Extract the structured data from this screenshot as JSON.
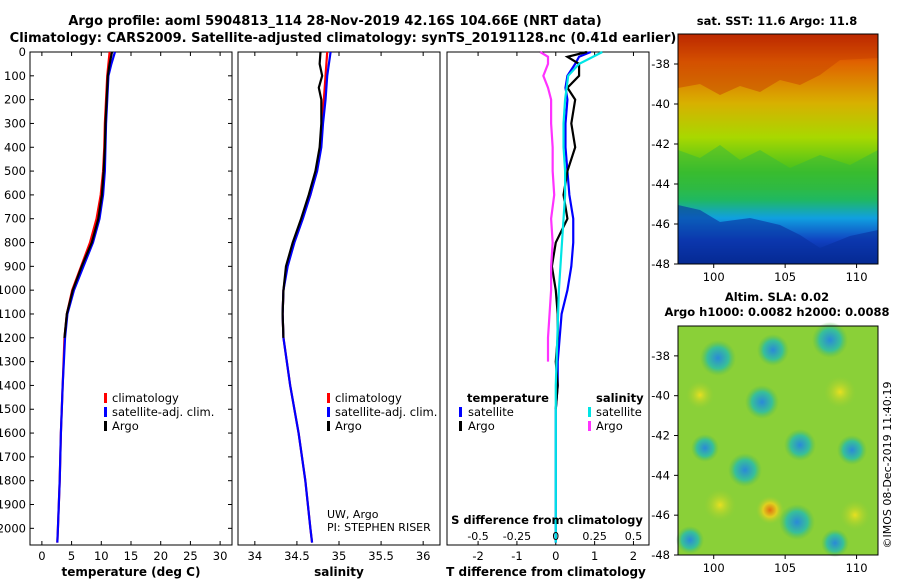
{
  "header": {
    "line1": "Argo profile: aoml 5904813_114 28-Nov-2019 42.16S 104.66E (NRT data)",
    "line2": "Climatology: CARS2009. Satellite-adjusted climatology: synTS_20191128.nc (0.41d earlier)"
  },
  "colors": {
    "climatology": "#ff0000",
    "satellite": "#0000ff",
    "argo": "#000000",
    "sat_salinity": "#00e5e5",
    "argo_salinity": "#ff33ff"
  },
  "chart_data": [
    {
      "type": "line",
      "name": "temperature",
      "xlabel": "temperature (deg C)",
      "ylabel": "",
      "xlim": [
        -2,
        32
      ],
      "ylim": [
        2070,
        0
      ],
      "xticks": [
        0,
        5,
        10,
        15,
        20,
        25,
        30
      ],
      "yticks": [
        0,
        100,
        200,
        300,
        400,
        500,
        600,
        700,
        800,
        900,
        1000,
        1100,
        1200,
        1300,
        1400,
        1500,
        1600,
        1700,
        1800,
        1900,
        2000
      ],
      "legend": [
        "climatology",
        "satellite-adj. clim.",
        "Argo"
      ],
      "series": [
        {
          "name": "climatology",
          "depth": [
            0,
            50,
            100,
            200,
            300,
            400,
            500,
            600,
            700,
            800,
            900,
            1000,
            1100,
            1200,
            1400,
            1600,
            1800,
            2000,
            2060
          ],
          "values": [
            11.4,
            11.2,
            11.0,
            10.8,
            10.6,
            10.5,
            10.3,
            9.9,
            9.2,
            8.1,
            6.6,
            5.1,
            4.2,
            3.8,
            3.5,
            3.2,
            3.0,
            2.7,
            2.6
          ]
        },
        {
          "name": "satellite-adj. clim.",
          "depth": [
            0,
            50,
            100,
            200,
            300,
            400,
            500,
            600,
            700,
            800,
            900,
            1000,
            1100,
            1200,
            1400,
            1600,
            1800,
            2000,
            2060
          ],
          "values": [
            12.3,
            11.7,
            11.2,
            11.0,
            10.8,
            10.7,
            10.6,
            10.3,
            9.7,
            8.6,
            7.0,
            5.4,
            4.3,
            3.9,
            3.5,
            3.2,
            3.0,
            2.7,
            2.6
          ]
        },
        {
          "name": "Argo",
          "depth": [
            0,
            50,
            100,
            200,
            300,
            400,
            500,
            600,
            700,
            800,
            900,
            1000,
            1100,
            1200
          ],
          "values": [
            11.8,
            11.4,
            11.1,
            10.9,
            10.7,
            10.6,
            10.4,
            10.1,
            9.5,
            8.4,
            6.7,
            5.2,
            4.2,
            3.8
          ]
        }
      ]
    },
    {
      "type": "line",
      "name": "salinity",
      "xlabel": "salinity",
      "xlim": [
        33.8,
        36.2
      ],
      "ylim": [
        2070,
        0
      ],
      "xticks": [
        34,
        34.5,
        35,
        35.5,
        36
      ],
      "xtick_labels": [
        "34",
        "34.5",
        "35",
        "35.5",
        "36"
      ],
      "legend": [
        "climatology",
        "satellite-adj. clim.",
        "Argo"
      ],
      "annotations": [
        "UW, Argo",
        "PI: STEPHEN RISER"
      ],
      "series": [
        {
          "name": "climatology",
          "depth": [
            0,
            100,
            200,
            300,
            400,
            500,
            600,
            700,
            800,
            900,
            1000,
            1100,
            1200,
            1400,
            1600,
            1800,
            2000,
            2060
          ],
          "values": [
            34.86,
            34.84,
            34.82,
            34.8,
            34.78,
            34.73,
            34.66,
            34.56,
            34.46,
            34.38,
            34.34,
            34.33,
            34.34,
            34.42,
            34.52,
            34.6,
            34.66,
            34.68
          ]
        },
        {
          "name": "satellite-adj. clim.",
          "depth": [
            0,
            50,
            100,
            200,
            300,
            400,
            500,
            600,
            700,
            800,
            900,
            1000,
            1100,
            1200,
            1400,
            1600,
            1800,
            2000,
            2060
          ],
          "values": [
            34.9,
            34.88,
            34.86,
            34.84,
            34.81,
            34.79,
            34.74,
            34.66,
            34.57,
            34.47,
            34.39,
            34.34,
            34.33,
            34.34,
            34.42,
            34.52,
            34.6,
            34.66,
            34.68
          ]
        },
        {
          "name": "Argo",
          "depth": [
            0,
            50,
            100,
            150,
            200,
            300,
            400,
            500,
            600,
            700,
            800,
            900,
            1000,
            1100,
            1200
          ],
          "values": [
            34.78,
            34.77,
            34.8,
            34.76,
            34.79,
            34.79,
            34.77,
            34.72,
            34.64,
            34.55,
            34.45,
            34.37,
            34.34,
            34.33,
            34.34
          ]
        }
      ]
    },
    {
      "type": "line",
      "name": "difference",
      "xlabel": "T difference from climatology",
      "title_bottom": "S difference from climatology",
      "xlim": [
        -2.8,
        2.4
      ],
      "ylim": [
        2070,
        0
      ],
      "xticks": [
        -2,
        -1,
        0,
        1,
        2
      ],
      "sticks_labels": [
        "-0.5",
        "-0.25",
        "0",
        "0.25",
        "0.5"
      ],
      "legend_temperature": {
        "title": "temperature",
        "items": [
          "satellite",
          "Argo"
        ]
      },
      "legend_salinity": {
        "title": "salinity",
        "items": [
          "satellite",
          "Argo"
        ]
      },
      "series": [
        {
          "name": "T satellite",
          "depth": [
            0,
            20,
            50,
            100,
            150,
            200,
            300,
            400,
            500,
            600,
            700,
            800,
            900,
            1000,
            1100,
            1200,
            1300,
            1400,
            1500,
            1600,
            1700,
            1800,
            1900,
            2000,
            2060
          ],
          "values": [
            0.9,
            0.6,
            0.5,
            0.3,
            0.25,
            0.3,
            0.25,
            0.25,
            0.3,
            0.35,
            0.45,
            0.45,
            0.4,
            0.3,
            0.15,
            0.1,
            0.05,
            0.05,
            0.0,
            0.0,
            0.0,
            0.0,
            0.0,
            0.0,
            0.0
          ]
        },
        {
          "name": "T Argo",
          "depth": [
            0,
            20,
            50,
            100,
            150,
            200,
            300,
            400,
            500,
            600,
            700,
            800,
            900,
            1000,
            1100,
            1200,
            1300,
            1400,
            1500
          ],
          "values": [
            0.8,
            0.3,
            0.6,
            0.6,
            0.3,
            0.5,
            0.4,
            0.5,
            0.3,
            0.2,
            0.3,
            0.0,
            -0.1,
            0.0,
            0.05,
            0.05,
            0.0,
            0.05,
            0.0
          ]
        },
        {
          "name": "S satellite",
          "depth": [
            0,
            50,
            100,
            200,
            300,
            400,
            500,
            600,
            700,
            800,
            900,
            1000,
            1200,
            1400,
            1600,
            1800,
            2000,
            2060
          ],
          "values": [
            0.3,
            0.15,
            0.08,
            0.06,
            0.05,
            0.05,
            0.06,
            0.06,
            0.05,
            0.04,
            0.03,
            0.02,
            0.01,
            0.0,
            0.0,
            0.0,
            0.0,
            0.0
          ]
        },
        {
          "name": "S Argo",
          "depth": [
            0,
            20,
            50,
            100,
            150,
            200,
            300,
            400,
            500,
            600,
            700,
            800,
            900,
            1000,
            1100,
            1200,
            1300
          ],
          "values": [
            -0.1,
            -0.05,
            -0.05,
            -0.08,
            -0.05,
            -0.03,
            -0.03,
            -0.02,
            -0.02,
            -0.01,
            -0.03,
            -0.02,
            -0.03,
            -0.03,
            -0.04,
            -0.05,
            -0.05
          ]
        }
      ]
    },
    {
      "type": "heatmap",
      "name": "sst_map",
      "title": "sat. SST: 11.6 Argo: 11.8",
      "xlim": [
        97.5,
        111.5
      ],
      "ylim": [
        -48,
        -36.5
      ],
      "xticks": [
        100,
        105,
        110
      ],
      "yticks": [
        -38,
        -40,
        -42,
        -44,
        -46,
        -48
      ]
    },
    {
      "type": "heatmap",
      "name": "sla_map",
      "title1": "Altim. SLA: 0.02",
      "title2": "Argo h1000: 0.0082 h2000: 0.0088",
      "xlim": [
        97.5,
        111.5
      ],
      "ylim": [
        -48,
        -36.5
      ],
      "xticks": [
        100,
        105,
        110
      ],
      "yticks": [
        -38,
        -40,
        -42,
        -44,
        -46,
        -48
      ]
    }
  ],
  "footer": {
    "credit": "©IMOS 08-Dec-2019 11:40:19"
  }
}
